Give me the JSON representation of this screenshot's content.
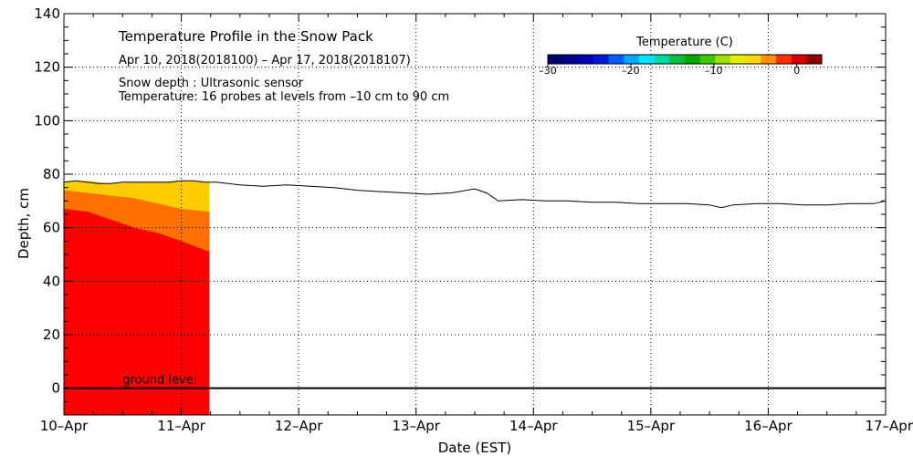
{
  "chart_data": {
    "type": "area",
    "title": "Temperature Profile in the Snow Pack",
    "subtitle": "Apr 10, 2018(2018100) – Apr 17, 2018(2018107)",
    "notes": [
      "Snow depth : Ultrasonic sensor",
      "Temperature: 16 probes at levels from –10 cm to 90 cm"
    ],
    "xlabel": "Date (EST)",
    "ylabel": "Depth, cm",
    "x_ticks": [
      "10–Apr",
      "11–Apr",
      "12–Apr",
      "13–Apr",
      "14–Apr",
      "15–Apr",
      "16–Apr",
      "17–Apr"
    ],
    "x_range_days": [
      0,
      7
    ],
    "ylim": [
      -10,
      140
    ],
    "y_ticks": [
      0,
      20,
      40,
      60,
      80,
      100,
      120,
      140
    ],
    "grid": true,
    "annotation": "ground level",
    "colorbar": {
      "title": "Temperature (C)",
      "range": [
        -30,
        3
      ],
      "tick_labels": [
        "–30",
        "–20",
        "–10",
        "0"
      ],
      "tick_values": [
        -30,
        -20,
        -10,
        0
      ],
      "colors": [
        "#000070",
        "#000090",
        "#0000b4",
        "#0018dc",
        "#0060ff",
        "#00a8ff",
        "#00e6ff",
        "#00d8a0",
        "#00c040",
        "#00a800",
        "#40c800",
        "#a0e000",
        "#e0f000",
        "#ffd800",
        "#ff9000",
        "#ff3000",
        "#d80000",
        "#900000"
      ]
    },
    "snow_depth": {
      "x": [
        0,
        0.1,
        0.2,
        0.3,
        0.4,
        0.5,
        0.6,
        0.7,
        0.8,
        0.9,
        1.0,
        1.1,
        1.2,
        1.3,
        1.4,
        1.5,
        1.7,
        1.9,
        2.1,
        2.3,
        2.5,
        2.7,
        2.9,
        3.1,
        3.3,
        3.5,
        3.6,
        3.7,
        3.9,
        4.1,
        4.3,
        4.5,
        4.7,
        4.9,
        5.1,
        5.3,
        5.5,
        5.6,
        5.7,
        5.9,
        6.1,
        6.3,
        6.5,
        6.7,
        6.9,
        7.0
      ],
      "y": [
        77,
        77.5,
        77,
        76.5,
        76.5,
        77,
        77,
        77,
        77,
        77,
        77.5,
        77.5,
        77,
        77,
        76.5,
        76,
        75.5,
        76,
        75.5,
        75,
        74,
        73.5,
        73,
        72.5,
        73,
        74.5,
        73,
        70,
        70.5,
        70,
        70,
        69.5,
        69.5,
        69,
        69,
        69,
        68.5,
        67.5,
        68.5,
        69,
        69,
        68.5,
        68.5,
        69,
        69,
        70
      ]
    },
    "temperature_bands": {
      "x": [
        0,
        0.2,
        0.4,
        0.6,
        0.8,
        1.0,
        1.24
      ],
      "series": [
        {
          "temperature": 1,
          "color": "#ff0000",
          "top": [
            67,
            66,
            63,
            60,
            58,
            55,
            51
          ]
        },
        {
          "temperature": 0,
          "color": "#ff7000",
          "top": [
            74,
            73,
            72,
            71,
            69,
            67,
            66
          ]
        },
        {
          "temperature": -1,
          "color": "#ffcc00",
          "top": [
            77,
            77.5,
            76.5,
            77,
            77,
            77.5,
            77
          ]
        }
      ]
    }
  }
}
